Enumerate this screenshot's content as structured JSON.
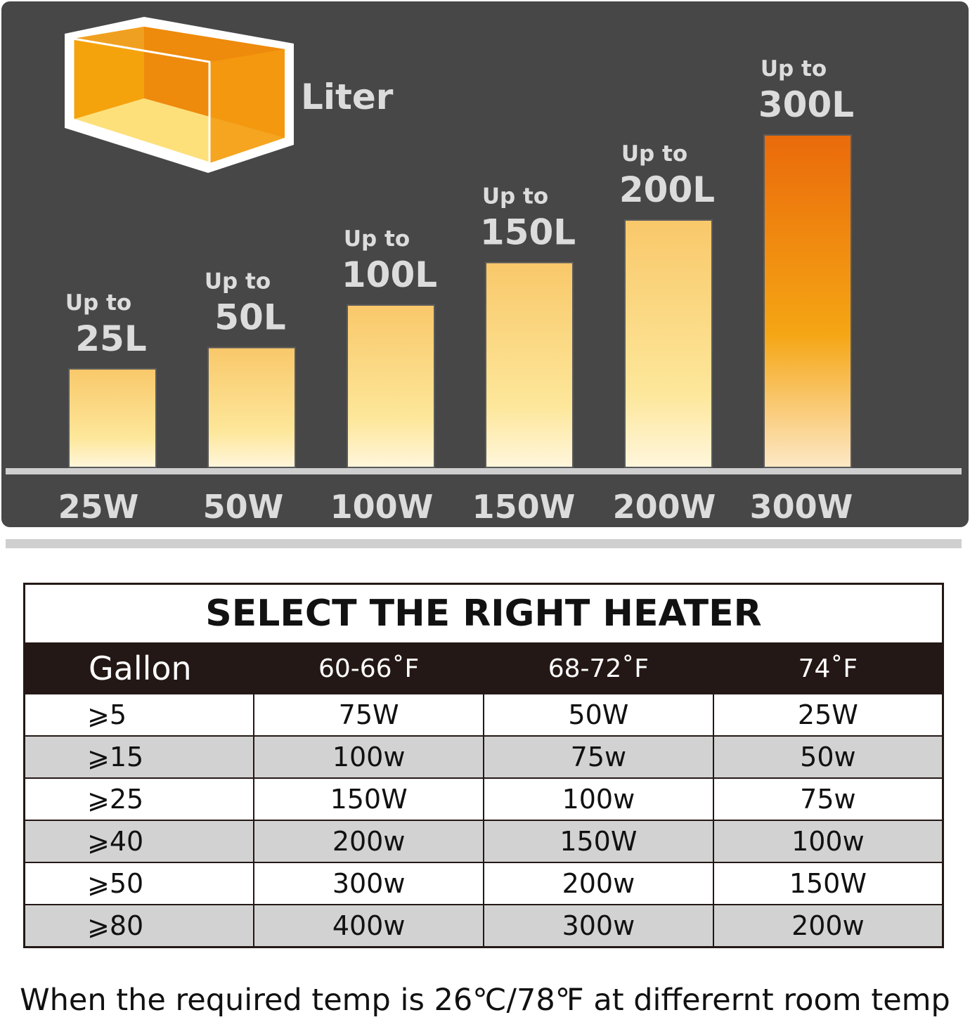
{
  "chart_data": {
    "type": "bar",
    "unit_label": "Liter",
    "value_prefix": "Up to",
    "categories": [
      "25W",
      "50W",
      "100W",
      "150W",
      "200W",
      "300W"
    ],
    "values": [
      25,
      50,
      100,
      150,
      200,
      300
    ],
    "value_labels": [
      "25L",
      "50L",
      "100L",
      "150L",
      "200L",
      "300L"
    ]
  },
  "table": {
    "title": "SELECT THE RIGHT HEATER",
    "columns": [
      "Gallon",
      "60-66˚F",
      "68-72˚F",
      "74˚F"
    ],
    "rows": [
      [
        "⩾5",
        "75W",
        "50W",
        "25W"
      ],
      [
        "⩾15",
        "100w",
        "75w",
        "50w"
      ],
      [
        "⩾25",
        "150W",
        "100w",
        "75w"
      ],
      [
        "⩾40",
        "200w",
        "150W",
        "100w"
      ],
      [
        "⩾50",
        "300w",
        "200w",
        "150W"
      ],
      [
        "⩾80",
        "400w",
        "300w",
        "200w"
      ]
    ]
  },
  "footnote": "When the required temp is 26℃/78℉ at differernt room temp"
}
